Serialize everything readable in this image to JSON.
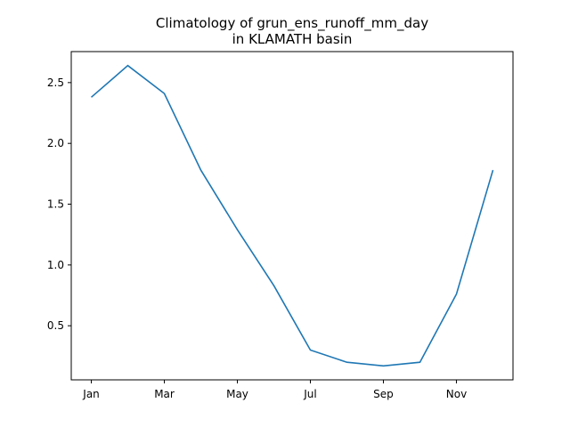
{
  "chart_data": {
    "type": "line",
    "title": "Climatology of grun_ens_runoff_mm_day\nin KLAMATH basin",
    "title_lines": [
      "Climatology of grun_ens_runoff_mm_day",
      "in KLAMATH basin"
    ],
    "xlabel": "",
    "ylabel": "",
    "x_tick_labels": [
      "Jan",
      "Mar",
      "May",
      "Jul",
      "Sep",
      "Nov"
    ],
    "x_tick_months": [
      1,
      3,
      5,
      7,
      9,
      11
    ],
    "y_tick_labels": [
      "0.5",
      "1.0",
      "1.5",
      "2.0",
      "2.5"
    ],
    "y_ticks": [
      0.5,
      1.0,
      1.5,
      2.0,
      2.5
    ],
    "xlim": [
      0.45,
      12.55
    ],
    "ylim": [
      0.055,
      2.755
    ],
    "grid": false,
    "series": [
      {
        "color": "#1f77b4",
        "x": [
          1,
          2,
          3,
          4,
          5,
          6,
          7,
          8,
          9,
          10,
          11,
          12
        ],
        "values": [
          2.38,
          2.64,
          2.41,
          1.78,
          1.29,
          0.83,
          0.3,
          0.2,
          0.17,
          0.2,
          0.76,
          1.78
        ]
      }
    ]
  }
}
